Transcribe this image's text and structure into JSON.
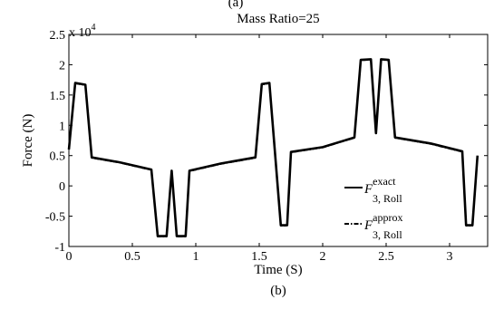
{
  "top_caption": "(a)",
  "bottom_caption": "(b)",
  "chart_data": {
    "type": "line",
    "title": "Mass Ratio=25",
    "xlabel": "Time (S)",
    "ylabel": "Force (N)",
    "y_multiplier_label": "x 10",
    "y_multiplier_exponent": "4",
    "xlim": [
      0,
      3.3
    ],
    "ylim": [
      -1,
      2.5
    ],
    "x_ticks": [
      0,
      0.5,
      1,
      1.5,
      2,
      2.5,
      3
    ],
    "x_tick_labels": [
      "0",
      "0.5",
      "1",
      "1.5",
      "2",
      "2.5",
      "3"
    ],
    "y_ticks": [
      -1,
      -0.5,
      0,
      0.5,
      1,
      1.5,
      2,
      2.5
    ],
    "y_tick_labels": [
      "-1",
      "-0.5",
      "0",
      "0.5",
      "1",
      "1.5",
      "2",
      "2.5"
    ],
    "legend_position": "right",
    "series": [
      {
        "name": "F exact 3, Roll",
        "legend_main": "F",
        "legend_sup": "exact",
        "legend_sub": "3, Roll",
        "style": "solid",
        "color": "#000000",
        "x": [
          0,
          0.05,
          0.13,
          0.18,
          0.4,
          0.65,
          0.7,
          0.77,
          0.81,
          0.85,
          0.92,
          0.95,
          1.2,
          1.47,
          1.52,
          1.58,
          1.67,
          1.72,
          1.75,
          2.0,
          2.25,
          2.3,
          2.38,
          2.42,
          2.46,
          2.52,
          2.57,
          2.85,
          3.1,
          3.13,
          3.18,
          3.22
        ],
        "y": [
          0.6,
          1.7,
          1.67,
          0.47,
          0.39,
          0.27,
          -0.83,
          -0.83,
          0.25,
          -0.83,
          -0.83,
          0.25,
          0.37,
          0.47,
          1.68,
          1.7,
          -0.65,
          -0.65,
          0.56,
          0.64,
          0.8,
          2.08,
          2.09,
          0.87,
          2.09,
          2.08,
          0.8,
          0.7,
          0.57,
          -0.65,
          -0.65,
          0.5
        ]
      },
      {
        "name": "F approx 3, Roll",
        "legend_main": "F",
        "legend_sup": "approx",
        "legend_sub": "3, Roll",
        "style": "dashdot",
        "color": "#000000",
        "x": [
          0,
          0.05,
          0.13,
          0.18,
          0.4,
          0.65,
          0.7,
          0.77,
          0.81,
          0.85,
          0.92,
          0.95,
          1.2,
          1.47,
          1.52,
          1.58,
          1.67,
          1.72,
          1.75,
          2.0,
          2.25,
          2.3,
          2.38,
          2.42,
          2.46,
          2.52,
          2.57,
          2.85,
          3.1,
          3.13,
          3.18,
          3.22
        ],
        "y": [
          0.6,
          1.69,
          1.66,
          0.46,
          0.38,
          0.26,
          -0.84,
          -0.84,
          0.24,
          -0.84,
          -0.84,
          0.24,
          0.36,
          0.46,
          1.67,
          1.69,
          -0.66,
          -0.66,
          0.55,
          0.63,
          0.79,
          2.07,
          2.08,
          0.86,
          2.08,
          2.07,
          0.79,
          0.69,
          0.56,
          -0.66,
          -0.66,
          0.49
        ]
      }
    ]
  }
}
